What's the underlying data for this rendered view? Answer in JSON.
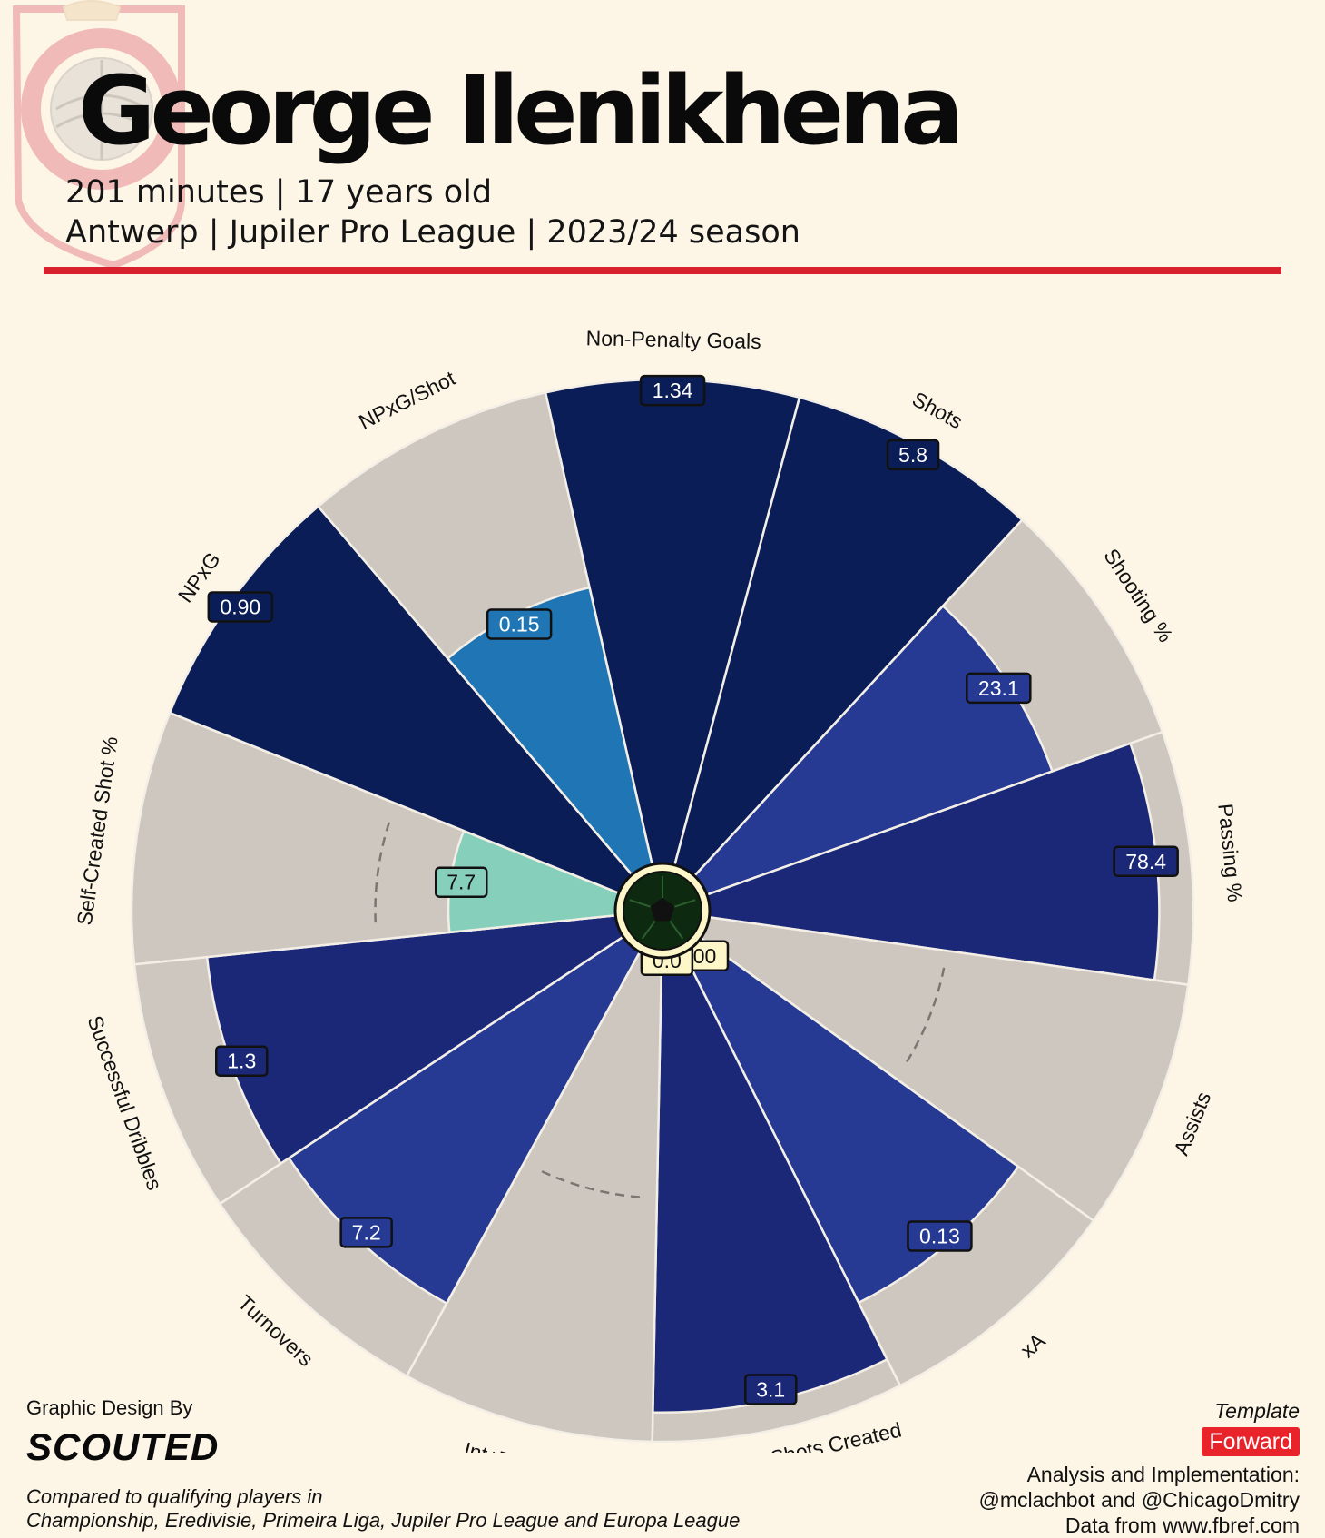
{
  "header": {
    "player_name": "George Ilenikhena",
    "subtitle_line1": "201 minutes | 17 years old",
    "subtitle_line2": "Antwerp | Jupiler Pro League | 2023/24 season",
    "accent_color": "#d9202e"
  },
  "chart_data": {
    "type": "radar-bar (pizza)",
    "percentile_range": [
      0,
      100
    ],
    "metrics": [
      {
        "label": "Non-Penalty Goals",
        "value": "1.34",
        "percentile": 100,
        "color": "#0b1d56"
      },
      {
        "label": "Shots",
        "value": "5.8",
        "percentile": 100,
        "color": "#0b1d56"
      },
      {
        "label": "Shooting %",
        "value": "23.1",
        "percentile": 76,
        "color": "#263a94"
      },
      {
        "label": "Passing %",
        "value": "78.4",
        "percentile": 93,
        "color": "#1b2878"
      },
      {
        "label": "Assists",
        "value": "0.00",
        "percentile": 0,
        "color": "#1b2878"
      },
      {
        "label": "xA",
        "value": "0.13",
        "percentile": 81,
        "color": "#263a94"
      },
      {
        "label": "Open Play Shots Created\nfor Others",
        "value": "3.1",
        "percentile": 94,
        "color": "#1b2878"
      },
      {
        "label": "Int+Tackles",
        "value": "0.0",
        "percentile": 0,
        "color": "#1b2878"
      },
      {
        "label": "Turnovers",
        "value": "7.2",
        "percentile": 83,
        "color": "#263a94"
      },
      {
        "label": "Successful Dribbles",
        "value": "1.3",
        "percentile": 85,
        "color": "#1b2878"
      },
      {
        "label": "Self-Created Shot %",
        "value": "7.7",
        "percentile": 35,
        "color": "#86d0bb"
      },
      {
        "label": "NPxG",
        "value": "0.90",
        "percentile": 100,
        "color": "#0b1d56"
      },
      {
        "label": "NPxG/Shot",
        "value": "0.15",
        "percentile": 59,
        "color": "#2076b5"
      }
    ],
    "median_marker_percentile": 50,
    "center_icon": "football-icon"
  },
  "footer": {
    "credit": "Graphic Design By",
    "brand": "SCOUTED",
    "comparison_line1": "Compared to qualifying players in",
    "comparison_line2": "Championship, Eredivisie, Primeira Liga, Jupiler Pro League and Europa League",
    "template_label": "Template",
    "template_value": "Forward",
    "analysis_line1": "Analysis and Implementation:",
    "analysis_line2": "@mclachbot and @ChicagoDmitry",
    "source": "Data from www.fbref.com"
  }
}
